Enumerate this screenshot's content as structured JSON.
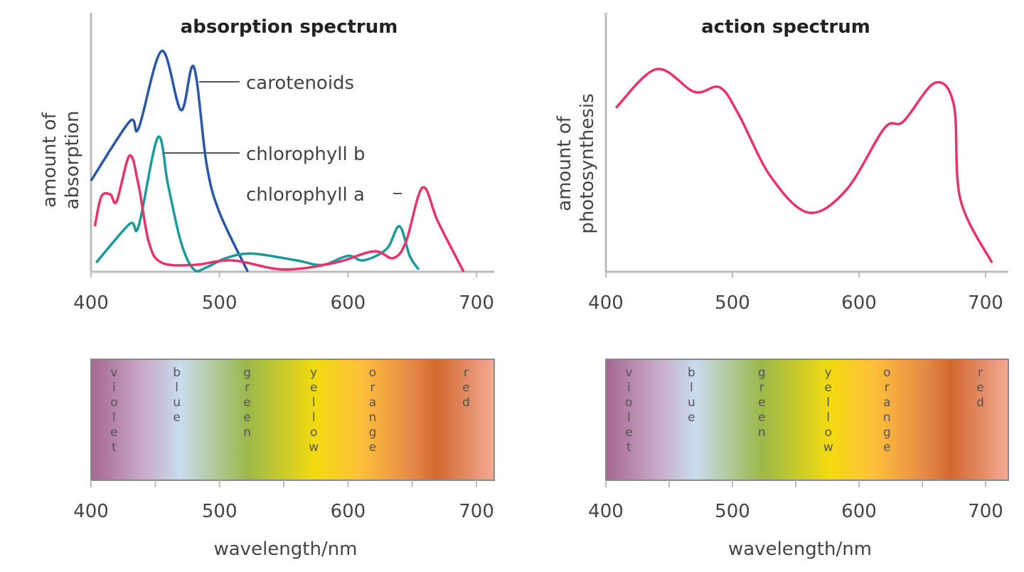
{
  "chart_data": [
    {
      "type": "line",
      "title": "absorption spectrum",
      "ylabel": [
        "amount of",
        "absorption"
      ],
      "xlim": [
        400,
        715
      ],
      "ylim": [
        0,
        100
      ],
      "xticks": [
        "400",
        "500",
        "600",
        "700"
      ],
      "series": [
        {
          "name": "carotenoids",
          "color": "#2a56a8",
          "x": [
            400,
            430,
            437,
            455,
            470,
            480,
            490,
            500,
            522
          ],
          "y": [
            40,
            66,
            63,
            97,
            71,
            90,
            47,
            26,
            0
          ]
        },
        {
          "name": "chlorophyll b",
          "color": "#1a9a9a",
          "x": [
            404,
            430,
            437,
            452,
            460,
            470,
            480,
            490,
            505,
            525,
            560,
            580,
            600,
            612,
            630,
            640,
            648,
            655
          ],
          "y": [
            4,
            21,
            20,
            59,
            38,
            13,
            1,
            2,
            6,
            8,
            5,
            3,
            7,
            5,
            10,
            20,
            7,
            1
          ]
        },
        {
          "name": "chlorophyll a",
          "color": "#e8336a",
          "x": [
            403,
            408,
            415,
            420,
            430,
            437,
            445,
            455,
            480,
            510,
            550,
            590,
            620,
            635,
            645,
            658,
            670,
            690
          ],
          "y": [
            20,
            33,
            34,
            31,
            51,
            38,
            13,
            4,
            3,
            5,
            1,
            4,
            9,
            6,
            13,
            37,
            22,
            0
          ]
        }
      ]
    },
    {
      "type": "line",
      "title": "action spectrum",
      "ylabel": [
        "amount of",
        "photosynthesis"
      ],
      "xlim": [
        400,
        715
      ],
      "ylim": [
        0,
        100
      ],
      "xticks": [
        "400",
        "500",
        "600",
        "700"
      ],
      "series": [
        {
          "color": "#e8336a",
          "x": [
            408,
            440,
            470,
            490,
            505,
            530,
            560,
            590,
            620,
            635,
            660,
            675,
            680,
            705
          ],
          "y": [
            72,
            89,
            79,
            81,
            69,
            42,
            26,
            36,
            63,
            66,
            83,
            73,
            32,
            4
          ]
        }
      ]
    }
  ],
  "spectrum_bar": {
    "xticks": [
      "400",
      "500",
      "600",
      "700"
    ],
    "xlabel": "wavelength/nm",
    "colors": [
      {
        "nm": 400,
        "color": "#a6678f"
      },
      {
        "nm": 440,
        "color": "#c8a8c8"
      },
      {
        "nm": 470,
        "color": "#c8dcee"
      },
      {
        "nm": 522,
        "color": "#9bb84a"
      },
      {
        "nm": 575,
        "color": "#f2da10"
      },
      {
        "nm": 610,
        "color": "#ffc03a"
      },
      {
        "nm": 650,
        "color": "#e48a48"
      },
      {
        "nm": 670,
        "color": "#d2692f"
      },
      {
        "nm": 715,
        "color": "#f2aa92"
      }
    ],
    "bands": [
      {
        "name": "violet",
        "nm": 418
      },
      {
        "name": "blue",
        "nm": 467
      },
      {
        "name": "green",
        "nm": 522
      },
      {
        "name": "yellow",
        "nm": 574
      },
      {
        "name": "orange",
        "nm": 620
      },
      {
        "name": "red",
        "nm": 693
      }
    ]
  }
}
